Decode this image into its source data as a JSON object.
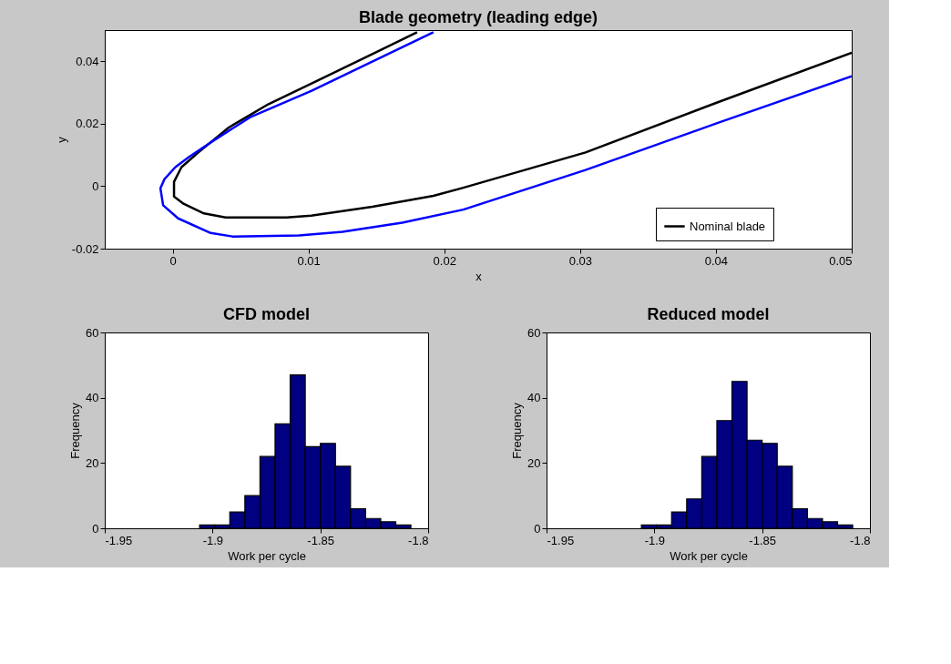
{
  "chart_data": [
    {
      "type": "line",
      "title": "Blade geometry (leading edge)",
      "xlabel": "x",
      "ylabel": "y",
      "xlim": [
        -0.005,
        0.05
      ],
      "xticks": [
        0,
        0.01,
        0.02,
        0.03,
        0.04,
        0.05
      ],
      "ylim": [
        -0.02,
        0.05
      ],
      "yticks": [
        -0.02,
        0,
        0.02,
        0.04
      ],
      "legend": "bottom right",
      "grid": false,
      "series": [
        {
          "name": "Nominal blade",
          "color": "#000000",
          "x": [
            0.018,
            0.0147,
            0.01065,
            0.00706,
            0.00413,
            0.00189,
            0.00065,
            0.0001,
            0.0001,
            0.0008,
            0.0023,
            0.0039,
            0.0084,
            0.0102,
            0.0147,
            0.0192,
            0.0214,
            0.0304,
            0.0401,
            0.05
          ],
          "values": [
            0.0493,
            0.0423,
            0.0338,
            0.0263,
            0.0188,
            0.0108,
            0.0061,
            0.0014,
            -0.0033,
            -0.0056,
            -0.0087,
            -0.01,
            -0.01,
            -0.0094,
            -0.0066,
            -0.0031,
            -0.0005,
            0.0108,
            0.0268,
            0.0427
          ]
        },
        {
          "color": "#0000ff",
          "x": [
            0.0192,
            0.0147,
            0.0102,
            0.00571,
            0.00301,
            0.00121,
            0.0002,
            -0.0006,
            -0.0009,
            -0.0007,
            0.0004,
            0.0028,
            0.0044,
            0.0093,
            0.0125,
            0.0169,
            0.0214,
            0.0304,
            0.0401,
            0.05
          ],
          "values": [
            0.0493,
            0.0399,
            0.0305,
            0.0221,
            0.0146,
            0.0094,
            0.0061,
            0.0023,
            -0.0007,
            -0.0061,
            -0.0103,
            -0.015,
            -0.0161,
            -0.0158,
            -0.0146,
            -0.0117,
            -0.0075,
            0.0052,
            0.0202,
            0.0352
          ]
        }
      ]
    },
    {
      "type": "histogram",
      "title": "CFD model",
      "xlabel": "Work per cycle",
      "ylabel": "Frequency",
      "xlim": [
        -1.95,
        -1.8
      ],
      "xticks": [
        -1.95,
        -1.9,
        -1.85,
        -1.8
      ],
      "ylim": [
        0,
        60
      ],
      "yticks": [
        0,
        20,
        40,
        60
      ],
      "color": "#000080",
      "bins": [
        -1.906,
        -1.899,
        -1.892,
        -1.885,
        -1.878,
        -1.871,
        -1.864,
        -1.857,
        -1.85,
        -1.843,
        -1.836,
        -1.829,
        -1.822,
        -1.815,
        -1.808
      ],
      "values": [
        1,
        1,
        5,
        10,
        22,
        32,
        47,
        25,
        26,
        19,
        6,
        3,
        2,
        1
      ]
    },
    {
      "type": "histogram",
      "title": "Reduced model",
      "xlabel": "Work per cycle",
      "ylabel": "Frequency",
      "xlim": [
        -1.95,
        -1.8
      ],
      "xticks": [
        -1.95,
        -1.9,
        -1.85,
        -1.8
      ],
      "ylim": [
        0,
        60
      ],
      "yticks": [
        0,
        20,
        40,
        60
      ],
      "color": "#000080",
      "bins": [
        -1.906,
        -1.899,
        -1.892,
        -1.885,
        -1.878,
        -1.871,
        -1.864,
        -1.857,
        -1.85,
        -1.843,
        -1.836,
        -1.829,
        -1.822,
        -1.815,
        -1.808
      ],
      "values": [
        1,
        1,
        5,
        9,
        22,
        33,
        45,
        27,
        26,
        19,
        6,
        3,
        2,
        1
      ]
    }
  ]
}
